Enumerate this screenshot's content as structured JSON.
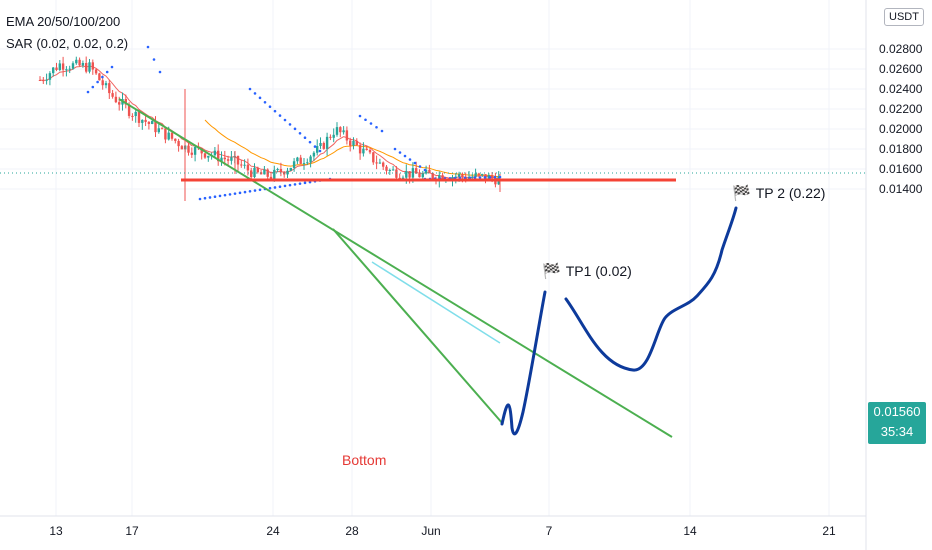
{
  "indicators": {
    "ema": "EMA 20/50/100/200",
    "sar": "SAR (0.02, 0.02, 0.2)"
  },
  "currency": "USDT",
  "price_tag": {
    "price": "0.01560",
    "countdown": "35:34"
  },
  "annotations": {
    "tp1": "TP1 (0.02)",
    "tp2": "TP 2 (0.22)",
    "bottom": "Bottom"
  },
  "colors": {
    "up": "#26a69a",
    "down": "#ef5350",
    "ema20": "#ef5350",
    "ema50": "#ff9800",
    "sar": "#2962ff",
    "trendline": "#4caf50",
    "bottom_line": "#f44336",
    "cyan_line": "#80deea",
    "drawn_path": "#0d3a9b",
    "price_tag": "#26a69a"
  },
  "icons": {
    "tp_flag": "checkered-flag-icon"
  },
  "chart_data": {
    "type": "candlestick",
    "y_axis": {
      "ticks": [
        "0.02800",
        "0.02600",
        "0.02400",
        "0.02200",
        "0.02000",
        "0.01800",
        "0.01600",
        "0.01400"
      ],
      "ylim": [
        0.0128,
        0.0282
      ]
    },
    "x_axis": {
      "ticks": [
        "13",
        "17",
        "24",
        "28",
        "Jun",
        "7",
        "14",
        "21"
      ]
    },
    "current_price": 0.0156,
    "support_level": 0.0149,
    "targets": [
      {
        "name": "TP1 (0.02)",
        "price": 0.0193
      },
      {
        "name": "TP 2 (0.22)",
        "price": 0.0219
      }
    ],
    "grid": true
  }
}
